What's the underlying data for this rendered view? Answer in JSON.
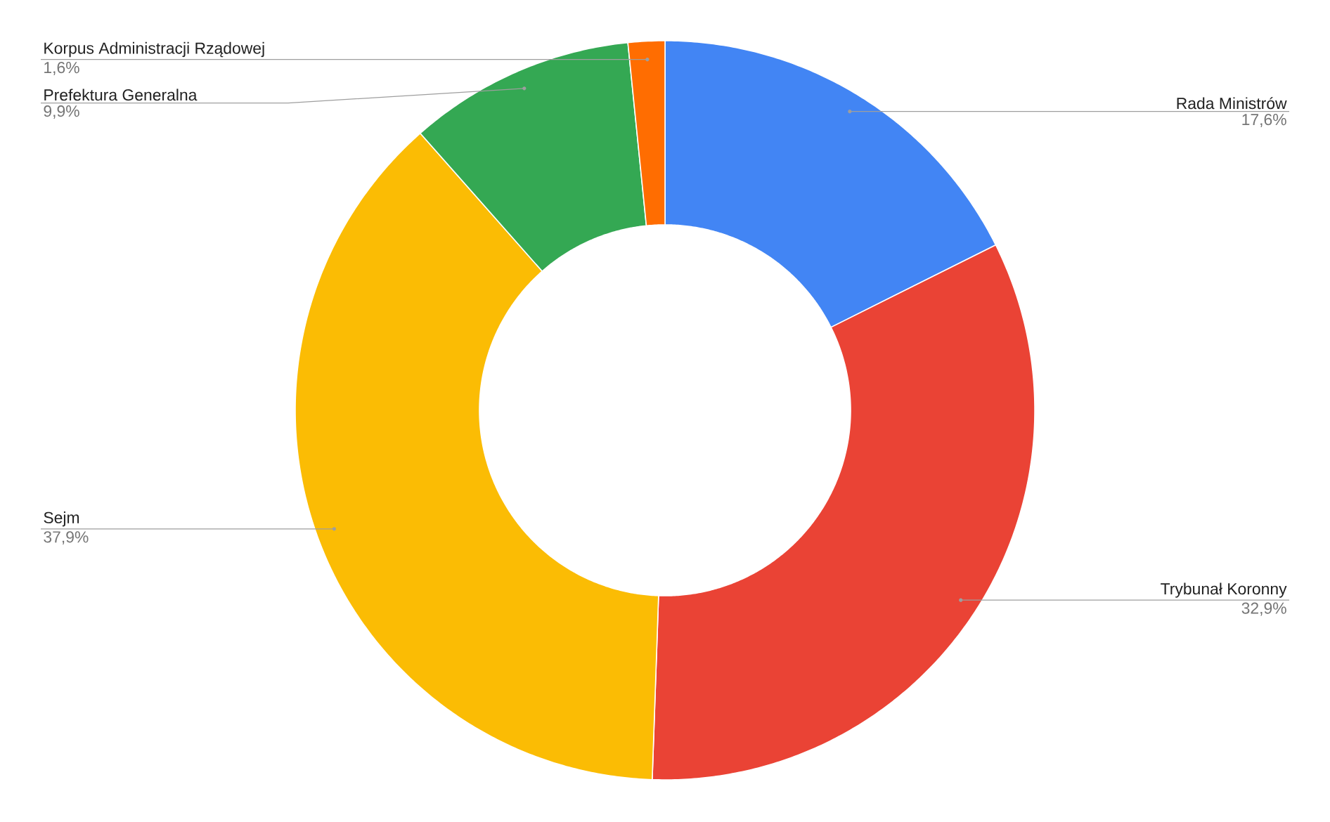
{
  "chart_data": {
    "type": "donut",
    "categories": [
      "Rada Ministrów",
      "Trybunał Koronny",
      "Sejm",
      "Prefektura Generalna",
      "Korpus Administracji Rządowej"
    ],
    "values": [
      17.6,
      32.9,
      37.9,
      9.9,
      1.6
    ],
    "colors": [
      "#4285f4",
      "#ea4335",
      "#fbbc04",
      "#34a853",
      "#ff6d01"
    ],
    "value_labels": [
      "17,6%",
      "32,9%",
      "37,9%",
      "9,9%",
      "1,6%"
    ]
  }
}
